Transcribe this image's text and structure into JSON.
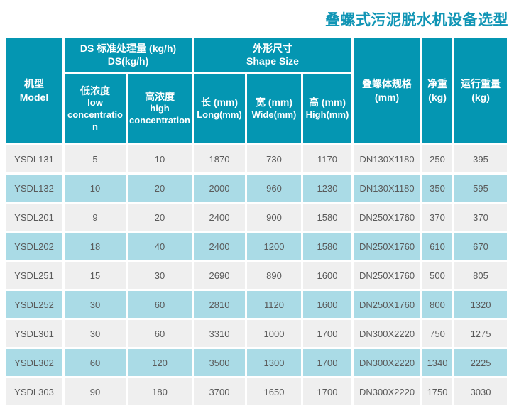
{
  "page_title": "叠螺式污泥脱水机设备选型",
  "colors": {
    "header_teal": "#0496b2",
    "title_teal": "#1095b5",
    "row_gray": "#efefef",
    "row_blue": "#aadbe6",
    "cell_text": "#5a5a5a"
  },
  "table": {
    "header": {
      "model": {
        "zh": "机型",
        "en": "Model"
      },
      "ds_group": {
        "line1": "DS 标准处理量 (kg/h)",
        "line2": "DS(kg/h)"
      },
      "low_concentration": {
        "zh": "低浓度",
        "en": "low concentration"
      },
      "high_concentration": {
        "zh": "高浓度",
        "en": "high concentration"
      },
      "shape_group": {
        "zh": "外形尺寸",
        "en": "Shape Size"
      },
      "length": {
        "zh": "长 (mm)",
        "en": "Long(mm)"
      },
      "width": {
        "zh": "宽 (mm)",
        "en": "Wide(mm)"
      },
      "height": {
        "zh": "高 (mm)",
        "en": "High(mm)"
      },
      "screw_spec": {
        "zh": "叠螺体规格",
        "en": "(mm)"
      },
      "net_weight": {
        "zh": "净重",
        "en": "(kg)"
      },
      "running_weight": {
        "zh": "运行重量",
        "en": "(kg)"
      }
    },
    "rows": [
      [
        "YSDL131",
        "5",
        "10",
        "1870",
        "730",
        "1170",
        "DN130X1180",
        "250",
        "395"
      ],
      [
        "YSDL132",
        "10",
        "20",
        "2000",
        "960",
        "1230",
        "DN130X1180",
        "350",
        "595"
      ],
      [
        "YSDL201",
        "9",
        "20",
        "2400",
        "900",
        "1580",
        "DN250X1760",
        "370",
        "370"
      ],
      [
        "YSDL202",
        "18",
        "40",
        "2400",
        "1200",
        "1580",
        "DN250X1760",
        "610",
        "670"
      ],
      [
        "YSDL251",
        "15",
        "30",
        "2690",
        "890",
        "1600",
        "DN250X1760",
        "500",
        "805"
      ],
      [
        "YSDL252",
        "30",
        "60",
        "2810",
        "1120",
        "1600",
        "DN250X1760",
        "800",
        "1320"
      ],
      [
        "YSDL301",
        "30",
        "60",
        "3310",
        "1000",
        "1700",
        "DN300X2220",
        "750",
        "1275"
      ],
      [
        "YSDL302",
        "60",
        "120",
        "3500",
        "1300",
        "1700",
        "DN300X2220",
        "1340",
        "2225"
      ],
      [
        "YSDL303",
        "90",
        "180",
        "3700",
        "1650",
        "1700",
        "DN300X2220",
        "1750",
        "3030"
      ]
    ]
  }
}
